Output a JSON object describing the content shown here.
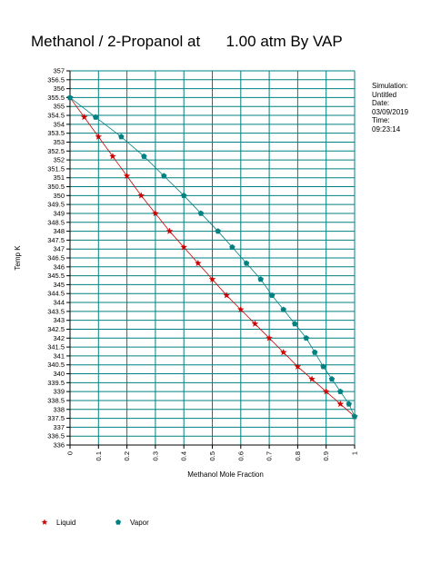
{
  "title": "Methanol / 2-Propanol at      1.00 atm By VAP",
  "info": {
    "simulation_label": "Simulation:",
    "simulation_value": "Untitled",
    "date_label": "Date:",
    "date_value": "03/09/2019",
    "time_label": "Time:",
    "time_value": "09:23:14"
  },
  "colors": {
    "liquid": "#cc0000",
    "vapor": "#008080",
    "grid": "#008080",
    "axis": "#000000"
  },
  "chart_data": {
    "type": "scatter",
    "title": "Methanol / 2-Propanol at      1.00 atm By VAP",
    "xlabel": "Methanol Mole Fraction",
    "ylabel": "Temp K",
    "xlim": [
      0,
      1
    ],
    "ylim": [
      336,
      357
    ],
    "x_ticks": [
      "0",
      "0.1",
      "0.2",
      "0.3",
      "0.4",
      "0.5",
      "0.6",
      "0.7",
      "0.8",
      "0.9",
      "1"
    ],
    "y_ticks": [
      "336",
      "336.5",
      "337",
      "337.5",
      "338",
      "338.5",
      "339",
      "339.5",
      "340",
      "340.5",
      "341",
      "341.5",
      "342",
      "342.5",
      "343",
      "343.5",
      "344",
      "344.5",
      "345",
      "345.5",
      "346",
      "346.5",
      "347",
      "347.5",
      "348",
      "348.5",
      "349",
      "349.5",
      "350",
      "350.5",
      "351",
      "351.5",
      "352",
      "352.5",
      "353",
      "353.5",
      "354",
      "354.5",
      "355",
      "355.5",
      "356",
      "356.5",
      "357"
    ],
    "grid": true,
    "legend_position": "bottom",
    "series": [
      {
        "name": "Liquid",
        "marker": "star",
        "x": [
          0.0,
          0.05,
          0.1,
          0.15,
          0.2,
          0.25,
          0.3,
          0.35,
          0.4,
          0.45,
          0.5,
          0.55,
          0.6,
          0.65,
          0.7,
          0.75,
          0.8,
          0.85,
          0.9,
          0.95,
          1.0
        ],
        "y": [
          355.5,
          354.4,
          353.3,
          352.2,
          351.1,
          350.0,
          349.0,
          348.0,
          347.1,
          346.2,
          345.3,
          344.4,
          343.6,
          342.8,
          342.0,
          341.2,
          340.4,
          339.7,
          339.0,
          338.3,
          337.6
        ]
      },
      {
        "name": "Vapor",
        "marker": "pentagon",
        "x": [
          0.0,
          0.09,
          0.18,
          0.26,
          0.33,
          0.4,
          0.46,
          0.52,
          0.57,
          0.62,
          0.67,
          0.71,
          0.75,
          0.79,
          0.83,
          0.86,
          0.89,
          0.92,
          0.95,
          0.98,
          1.0
        ],
        "y": [
          355.5,
          354.4,
          353.3,
          352.2,
          351.1,
          350.0,
          349.0,
          348.0,
          347.1,
          346.2,
          345.3,
          344.4,
          343.6,
          342.8,
          342.0,
          341.2,
          340.4,
          339.7,
          339.0,
          338.3,
          337.6
        ]
      }
    ]
  }
}
